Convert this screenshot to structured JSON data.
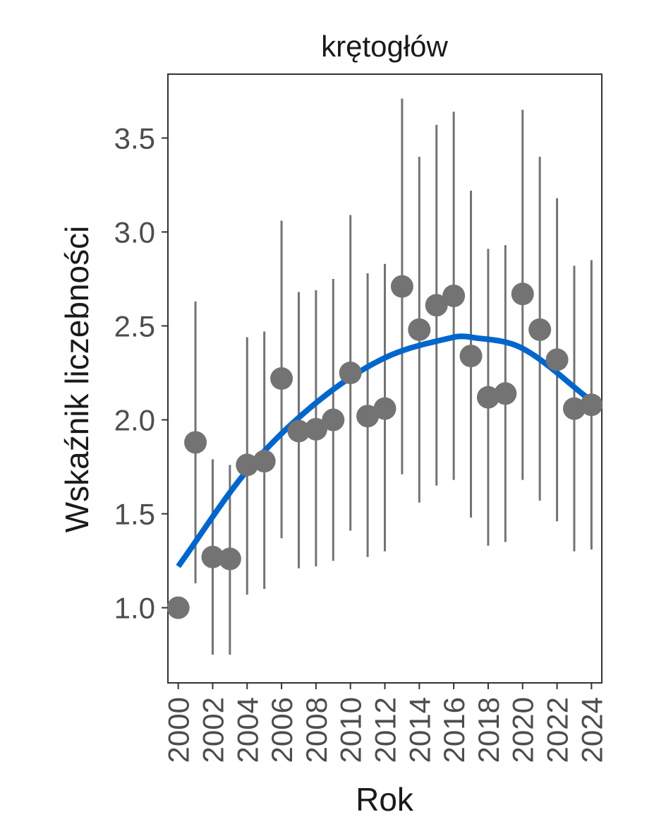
{
  "chart_data": {
    "type": "scatter",
    "title": "krętogłów",
    "xlabel": "Rok",
    "ylabel": "Wskaźnik liczebności",
    "xlim": [
      1999.4,
      2024.6
    ],
    "ylim": [
      0.6,
      3.84
    ],
    "x_ticks": [
      2000,
      2002,
      2004,
      2006,
      2008,
      2010,
      2012,
      2014,
      2016,
      2018,
      2020,
      2022,
      2024
    ],
    "y_ticks": [
      1.0,
      1.5,
      2.0,
      2.5,
      3.0,
      3.5
    ],
    "y_tick_labels": [
      "1.0",
      "1.5",
      "2.0",
      "2.5",
      "3.0",
      "3.5"
    ],
    "points": [
      {
        "x": 2000,
        "y": 1.0,
        "lo": null,
        "hi": null
      },
      {
        "x": 2001,
        "y": 1.88,
        "lo": 1.13,
        "hi": 2.63
      },
      {
        "x": 2002,
        "y": 1.27,
        "lo": 0.75,
        "hi": 1.79
      },
      {
        "x": 2003,
        "y": 1.26,
        "lo": 0.75,
        "hi": 1.76
      },
      {
        "x": 2004,
        "y": 1.76,
        "lo": 1.07,
        "hi": 2.44
      },
      {
        "x": 2005,
        "y": 1.78,
        "lo": 1.1,
        "hi": 2.47
      },
      {
        "x": 2006,
        "y": 2.22,
        "lo": 1.37,
        "hi": 3.06
      },
      {
        "x": 2007,
        "y": 1.94,
        "lo": 1.21,
        "hi": 2.68
      },
      {
        "x": 2008,
        "y": 1.95,
        "lo": 1.22,
        "hi": 2.69
      },
      {
        "x": 2009,
        "y": 2.0,
        "lo": 1.25,
        "hi": 2.75
      },
      {
        "x": 2010,
        "y": 2.25,
        "lo": 1.41,
        "hi": 3.09
      },
      {
        "x": 2011,
        "y": 2.02,
        "lo": 1.27,
        "hi": 2.78
      },
      {
        "x": 2012,
        "y": 2.06,
        "lo": 1.3,
        "hi": 2.83
      },
      {
        "x": 2013,
        "y": 2.71,
        "lo": 1.71,
        "hi": 3.71
      },
      {
        "x": 2014,
        "y": 2.48,
        "lo": 1.56,
        "hi": 3.4
      },
      {
        "x": 2015,
        "y": 2.61,
        "lo": 1.65,
        "hi": 3.57
      },
      {
        "x": 2016,
        "y": 2.66,
        "lo": 1.68,
        "hi": 3.64
      },
      {
        "x": 2017,
        "y": 2.34,
        "lo": 1.48,
        "hi": 3.22
      },
      {
        "x": 2018,
        "y": 2.12,
        "lo": 1.33,
        "hi": 2.91
      },
      {
        "x": 2019,
        "y": 2.14,
        "lo": 1.35,
        "hi": 2.93
      },
      {
        "x": 2020,
        "y": 2.67,
        "lo": 1.68,
        "hi": 3.65
      },
      {
        "x": 2021,
        "y": 2.48,
        "lo": 1.57,
        "hi": 3.4
      },
      {
        "x": 2022,
        "y": 2.32,
        "lo": 1.46,
        "hi": 3.18
      },
      {
        "x": 2023,
        "y": 2.06,
        "lo": 1.3,
        "hi": 2.82
      },
      {
        "x": 2024,
        "y": 2.08,
        "lo": 1.31,
        "hi": 2.85
      }
    ],
    "trend": {
      "type": "quadratic",
      "x": [
        2000,
        2004,
        2008,
        2012,
        2016,
        2017,
        2020,
        2024
      ],
      "y": [
        1.22,
        1.73,
        2.09,
        2.33,
        2.44,
        2.44,
        2.38,
        2.1
      ]
    },
    "colors": {
      "points": "#737373",
      "errorbars": "#737373",
      "trend": "#0066cc",
      "panel_border": "#333333",
      "axis_text": "#4d4d4d",
      "title_text": "#1a1a1a"
    },
    "grid": false,
    "legend": "none"
  }
}
